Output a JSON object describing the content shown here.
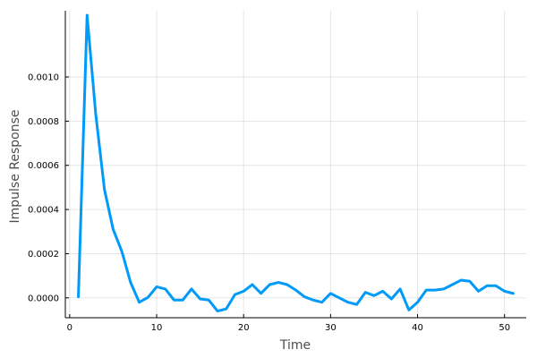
{
  "chart_data": {
    "type": "line",
    "xlabel": "Time",
    "ylabel": "Impulse Response",
    "xlim": [
      -0.5,
      52.5
    ],
    "ylim": [
      -9e-05,
      0.0013
    ],
    "xticks": [
      0,
      10,
      20,
      30,
      40,
      50
    ],
    "xtick_labels": [
      "0",
      "10",
      "20",
      "30",
      "40",
      "50"
    ],
    "yticks": [
      0.0,
      0.0002,
      0.0004,
      0.0006,
      0.0008,
      0.001
    ],
    "ytick_labels": [
      "0.0000",
      "0.0002",
      "0.0004",
      "0.0006",
      "0.0008",
      "0.0010"
    ],
    "grid": true,
    "legend": "none",
    "colors": {
      "series": "#009af9",
      "text": "#000000",
      "axis_label": "#4d4d4d"
    },
    "series": [
      {
        "x": [
          1,
          2,
          3,
          4,
          5,
          6,
          7,
          8,
          9,
          10,
          11,
          12,
          13,
          14,
          15,
          16,
          17,
          18,
          19,
          20,
          21,
          22,
          23,
          24,
          25,
          26,
          27,
          28,
          29,
          30,
          31,
          32,
          33,
          34,
          35,
          36,
          37,
          38,
          39,
          40,
          41,
          42,
          43,
          44,
          45,
          46,
          47,
          48,
          49,
          50,
          51
        ],
        "values": [
          5e-06,
          0.00128,
          0.00083,
          0.00049,
          0.00031,
          0.00021,
          7e-05,
          -2e-05,
          2e-06,
          5e-05,
          4e-05,
          -1e-05,
          -1e-05,
          4e-05,
          -5e-06,
          -1e-05,
          -6e-05,
          -5e-05,
          1.5e-05,
          3e-05,
          6e-05,
          2e-05,
          6e-05,
          7e-05,
          6e-05,
          3.5e-05,
          5e-06,
          -1e-05,
          -2e-05,
          2e-05,
          0.0,
          -2e-05,
          -3e-05,
          2.5e-05,
          1e-05,
          3e-05,
          -5e-06,
          4e-05,
          -5.5e-05,
          -2e-05,
          3.5e-05,
          3.5e-05,
          4e-05,
          6e-05,
          8e-05,
          7.5e-05,
          3e-05,
          5.5e-05,
          5.5e-05,
          3e-05,
          2e-05
        ]
      }
    ]
  }
}
